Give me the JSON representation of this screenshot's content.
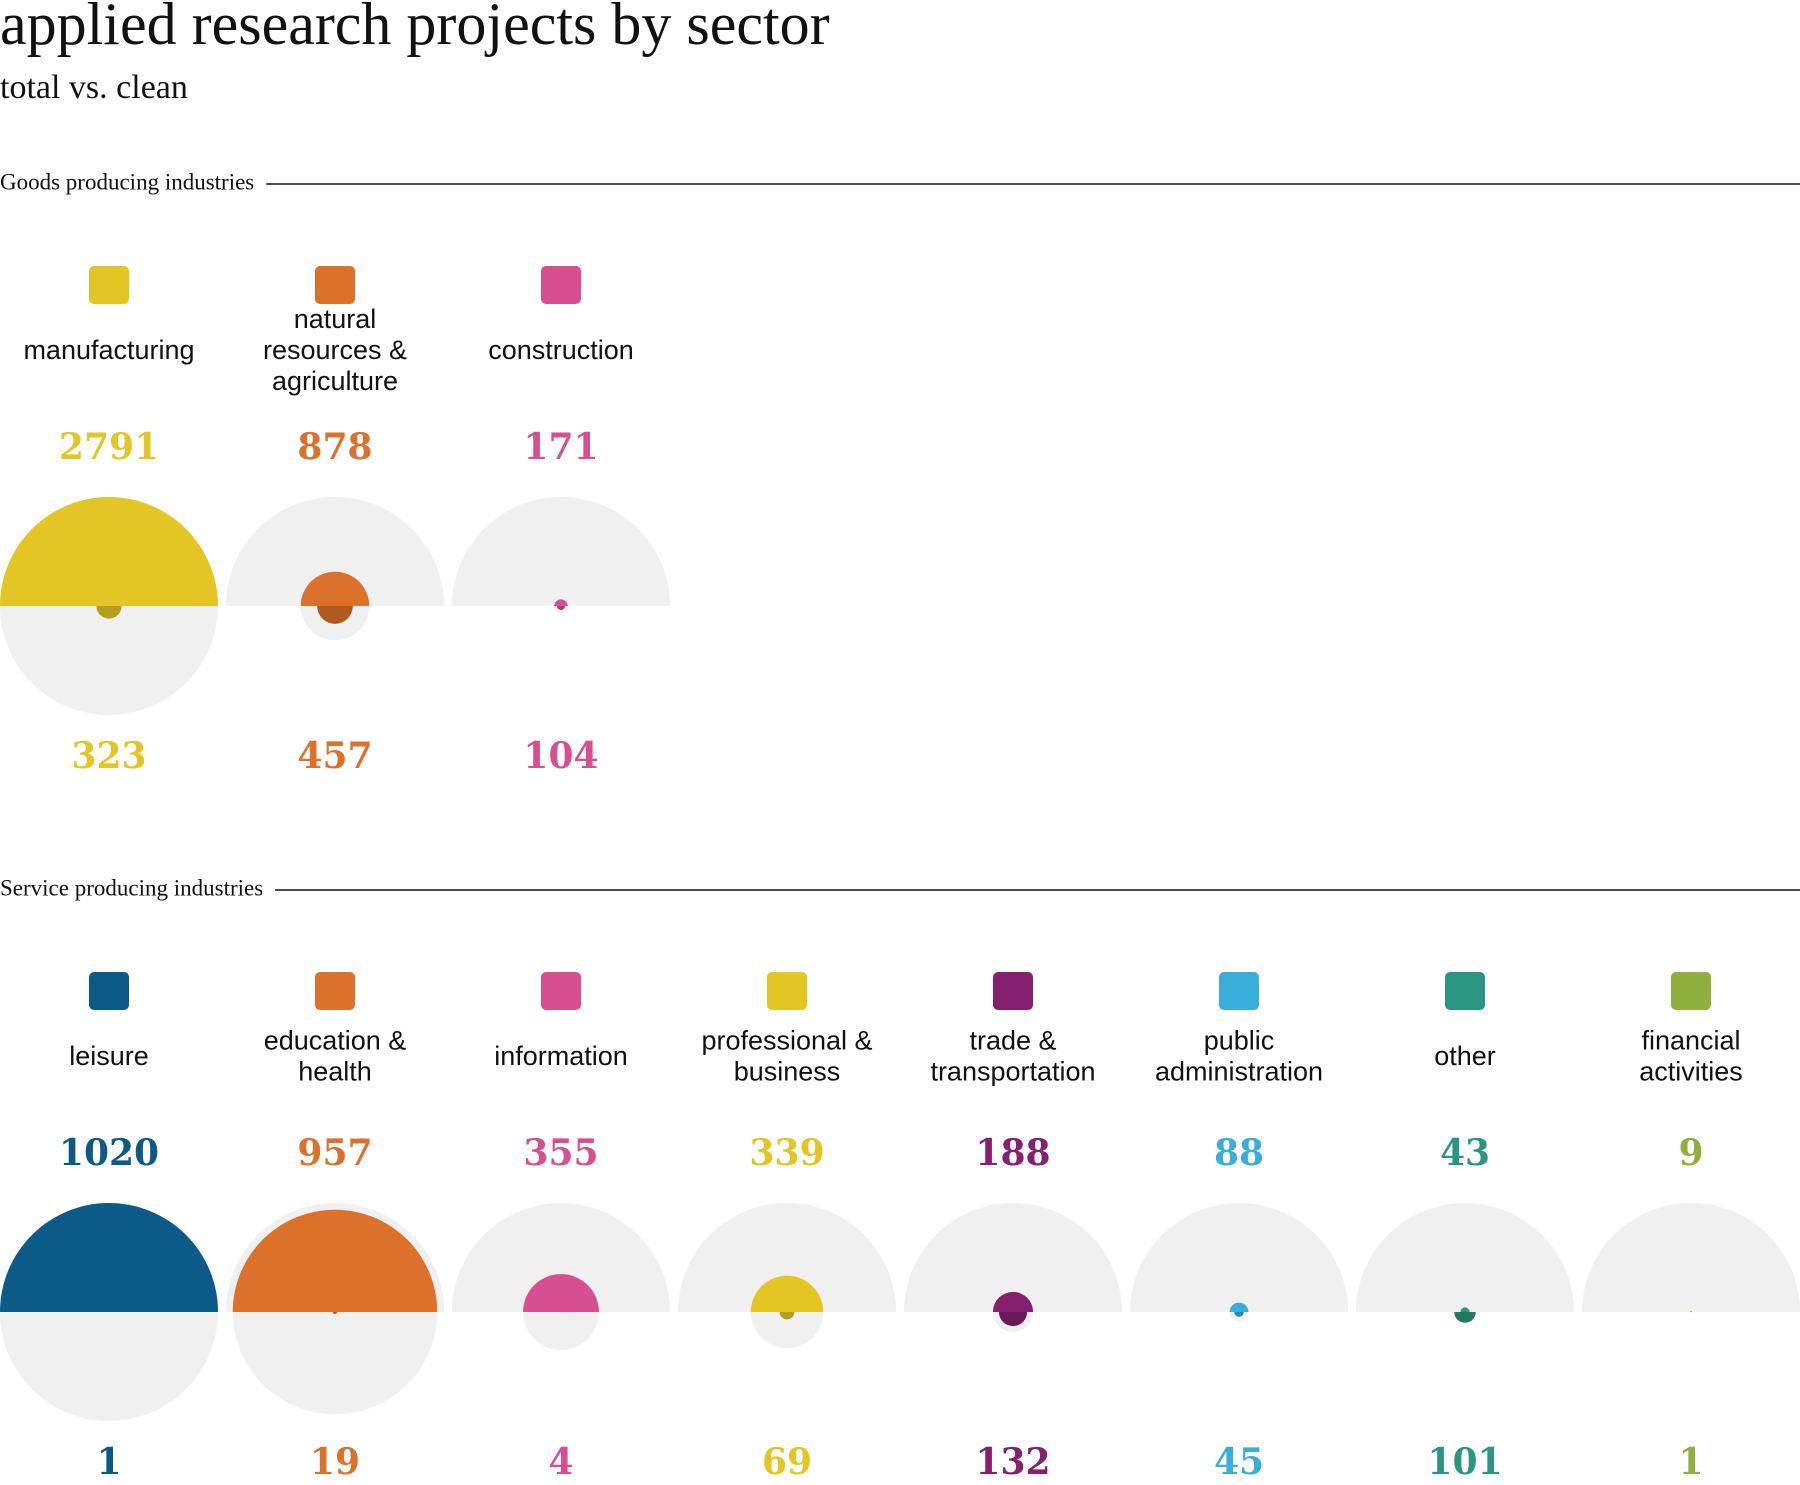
{
  "title": "applied research projects by sector",
  "subtitle": "total vs. clean",
  "chart_data": [
    {
      "type": "half-circle",
      "title": "Goods producing industries",
      "categories": [
        "manufacturing",
        "natural resources & agriculture",
        "construction"
      ],
      "colors": [
        "#e3c524",
        "#dc712b",
        "#d84f8f"
      ],
      "series": [
        {
          "values": [
            2791,
            878,
            171
          ]
        },
        {
          "values": [
            323,
            457,
            104
          ]
        }
      ]
    },
    {
      "type": "half-circle",
      "title": "Service producing industries",
      "categories": [
        "leisure",
        "education & health",
        "information",
        "professional & business",
        "trade & transportation",
        "public administration",
        "other",
        "financial activities"
      ],
      "colors": [
        "#0b5a87",
        "#dc712b",
        "#d84f8f",
        "#e3c524",
        "#85206f",
        "#3aaedb",
        "#2b9680",
        "#8fb03c"
      ],
      "series": [
        {
          "values": [
            1020,
            957,
            355,
            339,
            188,
            88,
            43,
            9
          ]
        },
        {
          "values": [
            1,
            19,
            4,
            69,
            132,
            45,
            101,
            1
          ]
        }
      ]
    }
  ]
}
